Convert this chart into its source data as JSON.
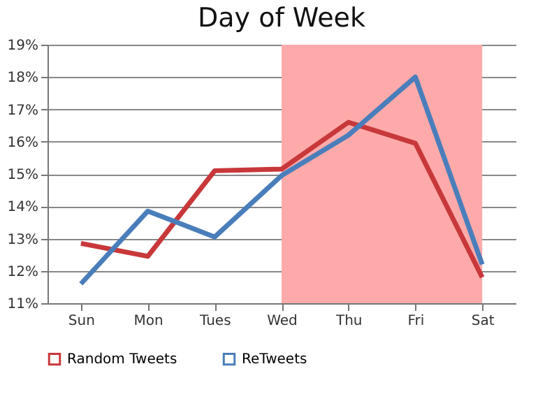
{
  "chart_data": {
    "type": "line",
    "title": "Day of Week",
    "categories": [
      "Sun",
      "Mon",
      "Tues",
      "Wed",
      "Thu",
      "Fri",
      "Sat"
    ],
    "series": [
      {
        "name": "Random Tweets",
        "color": "#c8383a",
        "values": [
          12.85,
          12.45,
          15.1,
          15.15,
          16.6,
          15.95,
          11.8
        ]
      },
      {
        "name": "ReTweets",
        "color": "#4a7ebb",
        "values": [
          11.6,
          13.85,
          13.05,
          14.95,
          16.2,
          18.0,
          12.2
        ]
      }
    ],
    "ylim": [
      11,
      19
    ],
    "yticks": [
      {
        "value": 11,
        "label": "11%"
      },
      {
        "value": 12,
        "label": "12%"
      },
      {
        "value": 13,
        "label": "13%"
      },
      {
        "value": 14,
        "label": "14%"
      },
      {
        "value": 15,
        "label": "15%"
      },
      {
        "value": 16,
        "label": "16%"
      },
      {
        "value": 17,
        "label": "17%"
      },
      {
        "value": 18,
        "label": "18%"
      },
      {
        "value": 19,
        "label": "19%"
      }
    ],
    "bands": [
      {
        "axis": "x",
        "from": "Wed",
        "to": "Sat",
        "color": "#ffaaaa"
      }
    ],
    "grid": "y",
    "legend": "bottom",
    "marker": "none",
    "line_style": "solid"
  }
}
